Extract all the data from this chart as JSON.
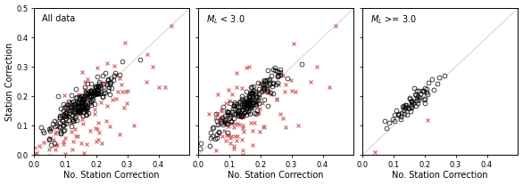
{
  "panels": [
    {
      "title": "All data"
    },
    {
      "title": "$M_L$ < 3.0"
    },
    {
      "title": "$M_L$ >= 3.0"
    }
  ],
  "xlabel": "No. Station Correction",
  "ylabel": "Station Correction",
  "xlim": [
    0.0,
    0.5
  ],
  "ylim": [
    0.0,
    0.5
  ],
  "xticks": [
    0.0,
    0.1,
    0.2,
    0.3,
    0.4
  ],
  "yticks": [
    0.0,
    0.1,
    0.2,
    0.3,
    0.4,
    0.5
  ],
  "circle_color": "black",
  "cross_color": "#d46060",
  "circle_ms": 3.5,
  "cross_ms": 3.5,
  "background": "white",
  "diag_color": "#cccccc",
  "n_circles_all": 220,
  "n_crosses_all": 100,
  "n_circles_small": 200,
  "n_crosses_small": 95,
  "n_circles_large": 65,
  "n_crosses_large": 2
}
